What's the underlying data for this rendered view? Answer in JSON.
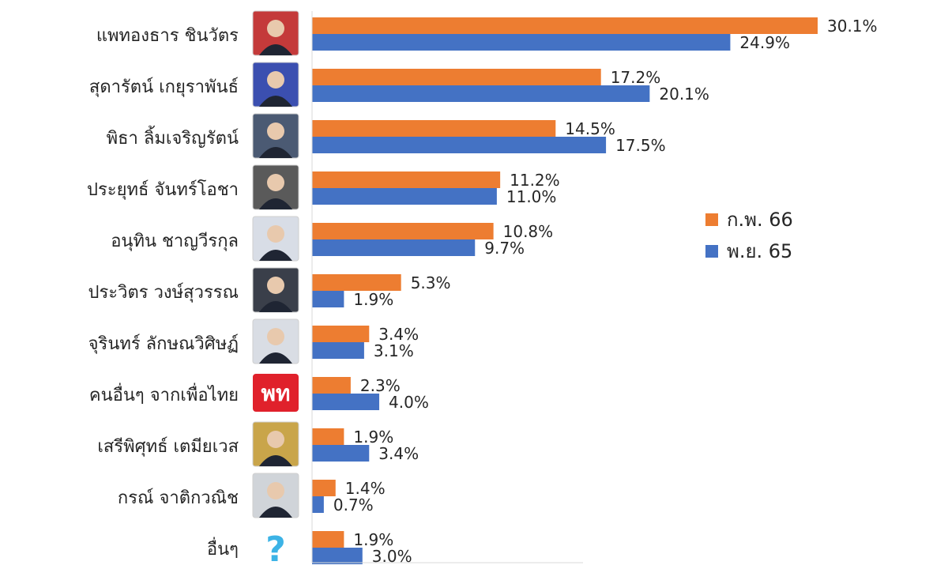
{
  "chart_data": {
    "type": "bar",
    "orientation": "horizontal",
    "categories": [
      "แพทองธาร ชินวัตร",
      "สุดารัตน์ เกยุราพันธ์",
      "พิธา ลิ้มเจริญรัตน์",
      "ประยุทธ์ จันทร์โอชา",
      "อนุทิน ชาญวีรกุล",
      "ประวิตร วงษ์สุวรรณ",
      "จุรินทร์ ลักษณวิศิษฏ์",
      "คนอื่นๆ จากเพื่อไทย",
      "เสรีพิศุทธ์ เตมียเวส",
      "กรณ์ จาติกวณิช",
      "อื่นๆ"
    ],
    "series": [
      {
        "name": "ก.พ. 66",
        "color": "#ED7D31",
        "values": [
          30.1,
          17.2,
          14.5,
          11.2,
          10.8,
          5.3,
          3.4,
          2.3,
          1.9,
          1.4,
          1.9
        ],
        "labels": [
          "30.1%",
          "17.2%",
          "14.5%",
          "11.2%",
          "10.8%",
          "5.3%",
          "3.4%",
          "2.3%",
          "1.9%",
          "1.4%",
          "1.9%"
        ]
      },
      {
        "name": "พ.ย. 65",
        "color": "#4472C4",
        "values": [
          24.9,
          20.1,
          17.5,
          11.0,
          9.7,
          1.9,
          3.1,
          4.0,
          3.4,
          0.7,
          3.0
        ],
        "labels": [
          "24.9%",
          "20.1%",
          "17.5%",
          "11.0%",
          "9.7%",
          "1.9%",
          "3.1%",
          "4.0%",
          "3.4%",
          "0.7%",
          "3.0%"
        ]
      }
    ],
    "icons": [
      "portrait",
      "portrait",
      "portrait",
      "portrait",
      "portrait",
      "portrait",
      "portrait",
      "pheu-thai-logo",
      "portrait",
      "portrait",
      "question-mark-icon"
    ],
    "logo_text": "พท",
    "icon_question_glyph": "?",
    "xlim": [
      0,
      32
    ],
    "grid": false,
    "legend_position": "right-middle"
  }
}
